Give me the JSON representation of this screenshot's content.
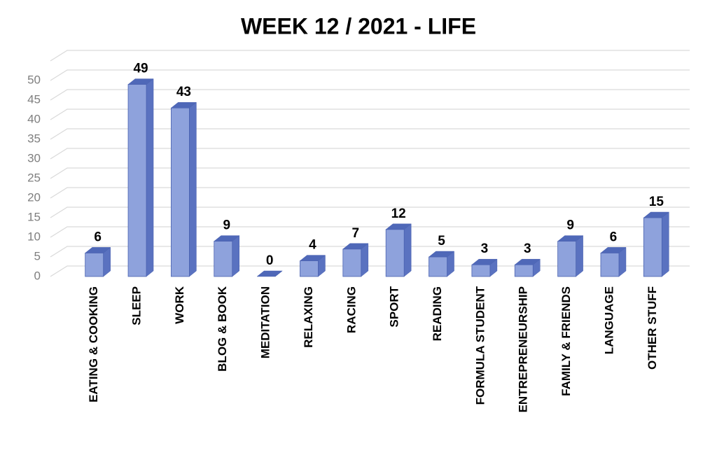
{
  "chart_data": {
    "type": "bar3d",
    "title": "WEEK 12  / 2021 - LIFE",
    "categories": [
      "EATING & COOKING",
      "SLEEP",
      "WORK",
      "BLOG & BOOK",
      "MEDITATION",
      "RELAXING",
      "RACING",
      "SPORT",
      "READING",
      "FORMULA STUDENT",
      "ENTREPRENEURSHIP",
      "FAMILY & FRIENDS",
      "LANGUAGE",
      "OTHER STUFF"
    ],
    "values": [
      6,
      49,
      43,
      9,
      0,
      4,
      7,
      12,
      5,
      3,
      3,
      9,
      6,
      15
    ],
    "color": "#8ea2dc",
    "ylim": [
      0,
      55
    ],
    "yticks": [
      0,
      5,
      10,
      15,
      20,
      25,
      30,
      35,
      40,
      45,
      50
    ],
    "grid": true
  }
}
